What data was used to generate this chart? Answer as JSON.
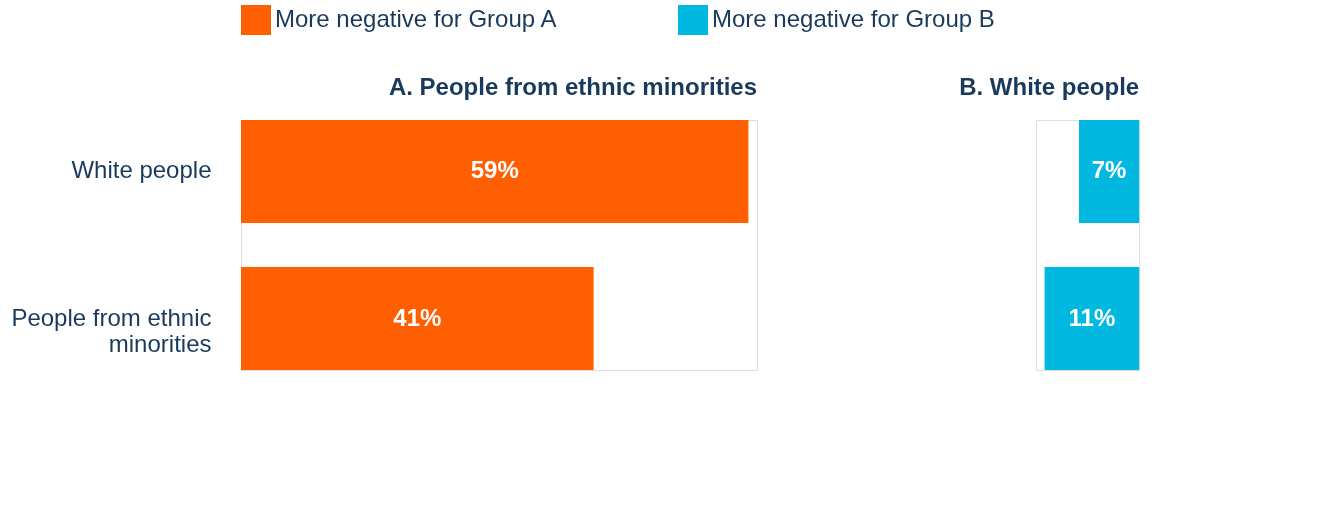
{
  "chart_data": [
    {
      "type": "bar",
      "orientation": "horizontal",
      "title": "A. People from ethnic minorities",
      "categories": [
        "White people",
        "People from ethnic minorities"
      ],
      "xlim": [
        0,
        60
      ],
      "tick_labels": "y",
      "legend": "top",
      "series": [
        {
          "name": "More negative for Group A",
          "color": "#ff5f00",
          "values": [
            59,
            41
          ],
          "value_labels": [
            "59%",
            "41%"
          ]
        }
      ]
    },
    {
      "type": "bar",
      "orientation": "horizontal",
      "title": "B. White people",
      "categories": [
        null,
        null
      ],
      "xlim": [
        12,
        0
      ],
      "tick_labels": false,
      "series": [
        {
          "name": "More negative for Group B",
          "color": "#00b8e0",
          "values": [
            7,
            11
          ],
          "value_labels": [
            "7%",
            "11%"
          ]
        }
      ]
    }
  ]
}
